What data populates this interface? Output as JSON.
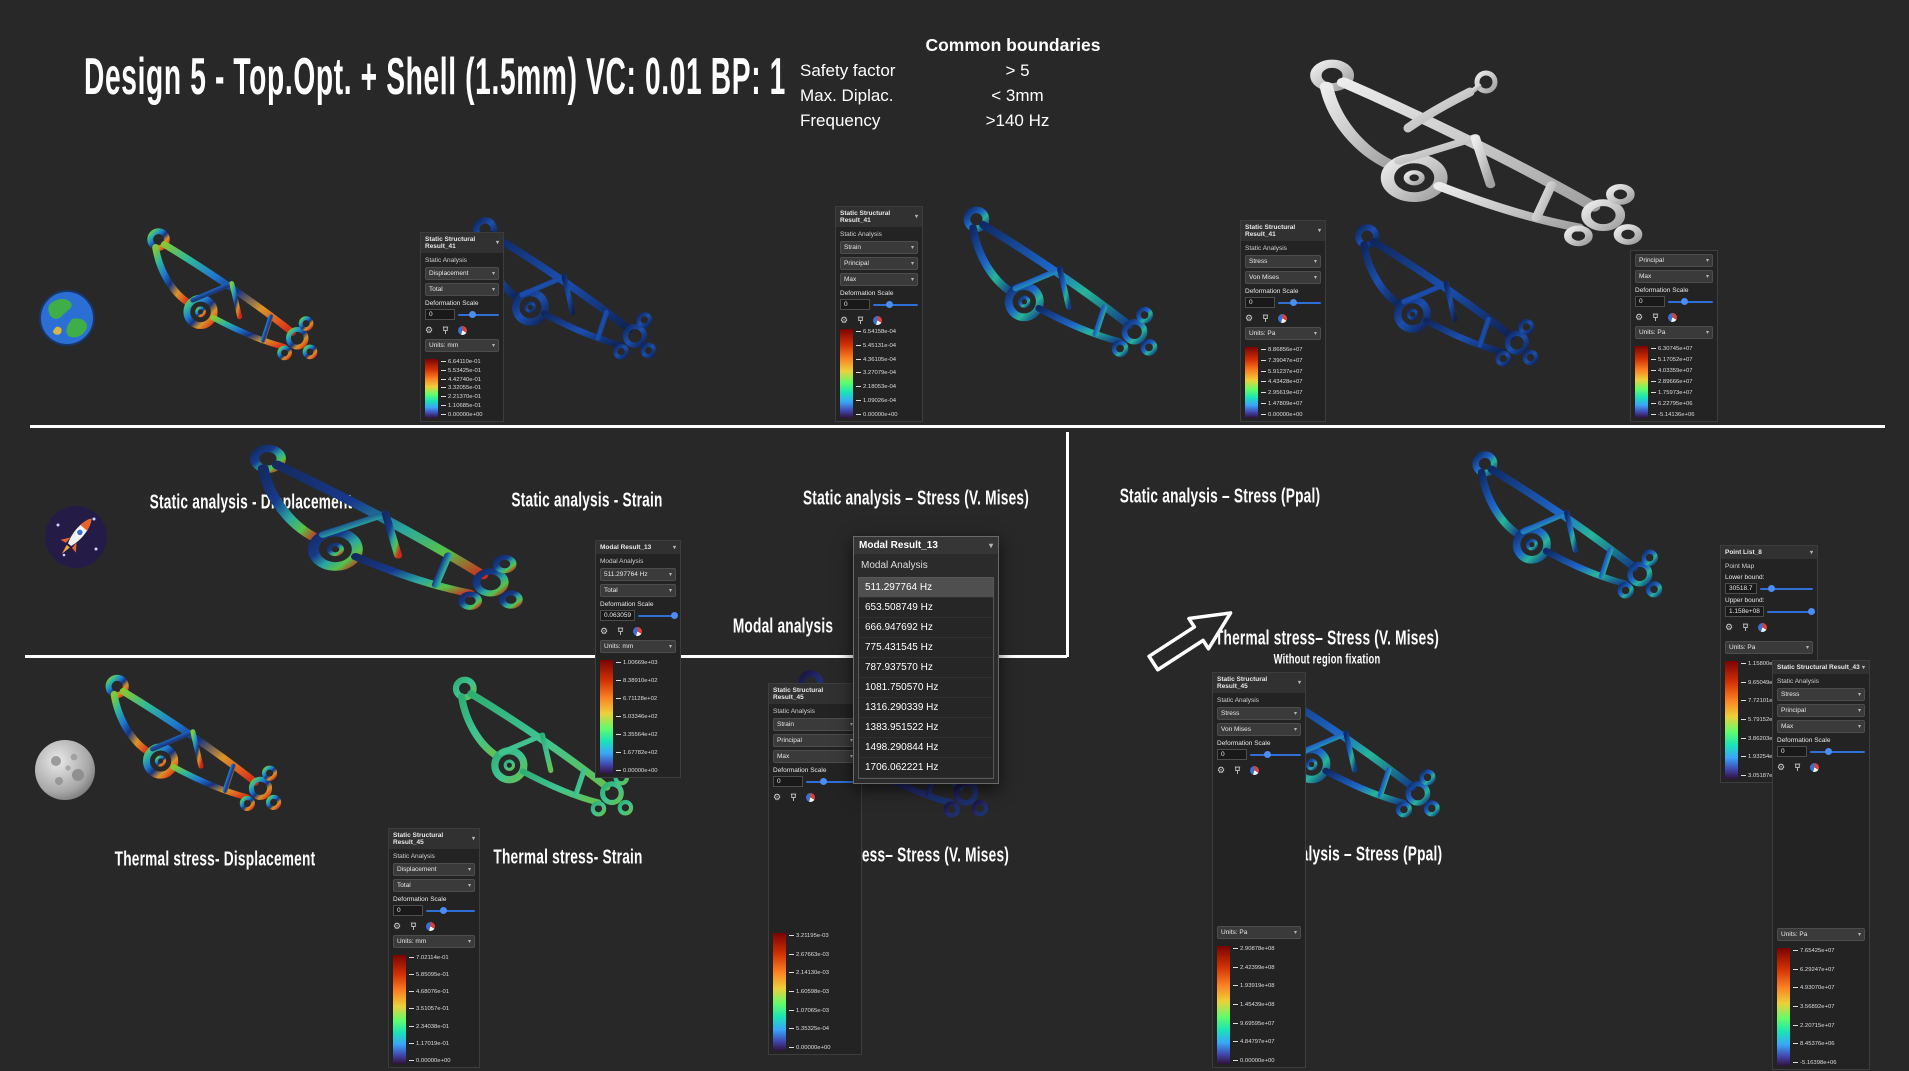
{
  "title": "Design 5 - Top.Opt. + Shell (1.5mm) VC: 0.01 BP: 1",
  "boundaries": {
    "header": "Common boundaries",
    "rows": [
      {
        "label": "Safety factor",
        "value": "> 5"
      },
      {
        "label": "Max. Diplac.",
        "value": "< 3mm"
      },
      {
        "label": "Frequency",
        "value": ">140 Hz"
      }
    ]
  },
  "strings": {
    "deformation_scale": "Deformation Scale"
  },
  "captions": {
    "row1": [
      "Static analysis - Displacement",
      "Static analysis - Strain",
      "Static analysis – Stress (V. Mises)",
      "Static analysis – Stress (Ppal)"
    ],
    "modal": "Modal analysis",
    "thermal_right_title": "Thermal stress– Stress (V. Mises)",
    "thermal_right_sub": "Without region fixation",
    "row3": [
      "Thermal stress- Displacement",
      "Thermal stress- Strain",
      "Thermal stress– Stress (V. Mises)",
      "Static analysis – Stress (Ppal)"
    ]
  },
  "modal_dropdown": {
    "title": "Modal Result_13",
    "section": "Modal Analysis",
    "selected_index": 0,
    "items": [
      "511.297764 Hz",
      "653.508749 Hz",
      "666.947692 Hz",
      "775.431545 Hz",
      "787.937570 Hz",
      "1081.750570 Hz",
      "1316.290339 Hz",
      "1383.951522 Hz",
      "1498.290844 Hz",
      "1706.062221 Hz"
    ]
  },
  "panels": [
    {
      "id": "r1_disp",
      "title": "Static Structural Result_41",
      "section": "Static Analysis",
      "dropdowns": [
        "Displacement",
        "Total"
      ],
      "def_value": "0",
      "units": "Units: mm",
      "colorbar": [
        "6.64110e-01",
        "5.53425e-01",
        "4.42740e-01",
        "3.32055e-01",
        "2.21370e-01",
        "1.10685e-01",
        "0.00000e+00"
      ]
    },
    {
      "id": "r1_strain",
      "title": "Static Structural Result_41",
      "section": "Static Analysis",
      "dropdowns": [
        "Strain",
        "Principal",
        "Max"
      ],
      "def_value": "0",
      "units": null,
      "colorbar": [
        "6.54158e-04",
        "5.45131e-04",
        "4.36105e-04",
        "3.27079e-04",
        "2.18053e-04",
        "1.09026e-04",
        "0.00000e+00"
      ]
    },
    {
      "id": "r1_vm",
      "title": "Static Structural Result_41",
      "section": "Static Analysis",
      "dropdowns": [
        "Stress",
        "Von Mises"
      ],
      "def_value": "0",
      "units": "Units: Pa",
      "colorbar": [
        "8.86856e+07",
        "7.39047e+07",
        "5.91237e+07",
        "4.43428e+07",
        "2.95619e+07",
        "1.47809e+07",
        "0.00000e+00"
      ]
    },
    {
      "id": "r1_ppal",
      "title": null,
      "section": null,
      "dropdowns": [
        "Principal",
        "Max"
      ],
      "def_value": "0",
      "units": "Units: Pa",
      "colorbar": [
        "6.30745e+07",
        "5.17052e+07",
        "4.03359e+07",
        "2.89666e+07",
        "1.75973e+07",
        "6.22795e+06",
        "-5.14136e+06"
      ]
    },
    {
      "id": "r2_modal",
      "title": "Modal Result_13",
      "section": "Modal Analysis",
      "dropdowns": [
        "511.297764 Hz",
        "Total"
      ],
      "def_value": "0.063059",
      "units": "Units: mm",
      "colorbar": [
        "1.00669e+03",
        "8.38910e+02",
        "6.71128e+02",
        "5.03346e+02",
        "3.35564e+02",
        "1.67782e+02",
        "0.00000e+00"
      ]
    },
    {
      "id": "r2_point",
      "title": "Point List_8",
      "section": "Point Map",
      "bounds": {
        "lower_label": "Lower bound:",
        "lower": "30518.7",
        "upper_label": "Upper bound:",
        "upper": "1.158e+08"
      },
      "units": "Units: Pa",
      "colorbar": [
        "1.15800e+08",
        "9.65049e+07",
        "7.72101e+07",
        "5.79152e+07",
        "3.86203e+07",
        "1.93254e+07",
        "3.05187e+04"
      ]
    },
    {
      "id": "r3_disp",
      "title": "Static Structural Result_45",
      "section": "Static Analysis",
      "dropdowns": [
        "Displacement",
        "Total"
      ],
      "def_value": "0",
      "units": "Units: mm",
      "colorbar": [
        "7.02114e-01",
        "5.85095e-01",
        "4.68076e-01",
        "3.51057e-01",
        "2.34038e-01",
        "1.17019e-01",
        "0.00000e+00"
      ]
    },
    {
      "id": "r3_strain",
      "title": "Static Structural Result_45",
      "section": "Static Analysis",
      "dropdowns": [
        "Strain",
        "Principal",
        "Max"
      ],
      "def_value": "0",
      "units": null,
      "colorbar": [
        "3.21195e-03",
        "2.67663e-03",
        "2.14130e-03",
        "1.60598e-03",
        "1.07065e-03",
        "5.35325e-04",
        "0.00000e+00"
      ]
    },
    {
      "id": "r3_vm",
      "title": "Static Structural Result_45",
      "section": "Static Analysis",
      "dropdowns": [
        "Stress",
        "Von Mises"
      ],
      "def_value": "0",
      "units": "Units: Pa",
      "colorbar": [
        "2.90878e+08",
        "2.42399e+08",
        "1.93919e+08",
        "1.45439e+08",
        "9.69595e+07",
        "4.84797e+07",
        "0.00000e+00"
      ]
    },
    {
      "id": "r3_ppal",
      "title": "Static Structural Result_43",
      "section": "Static Analysis",
      "dropdowns": [
        "Stress",
        "Principal",
        "Max"
      ],
      "def_value": "0",
      "units": "Units: Pa",
      "colorbar": [
        "7.65425e+07",
        "6.29247e+07",
        "4.93070e+07",
        "3.56892e+07",
        "2.20715e+07",
        "8.45376e+06",
        "-5.16398e+06"
      ]
    }
  ],
  "icons": {
    "gear": "⚙",
    "chevron_down": "▾"
  },
  "colors": {
    "background": "#282828",
    "divider": "#ffffff",
    "accent_blue": "#2f6fd6",
    "colorbar_top": "#7a0403",
    "colorbar_bottom": "#30123b"
  }
}
